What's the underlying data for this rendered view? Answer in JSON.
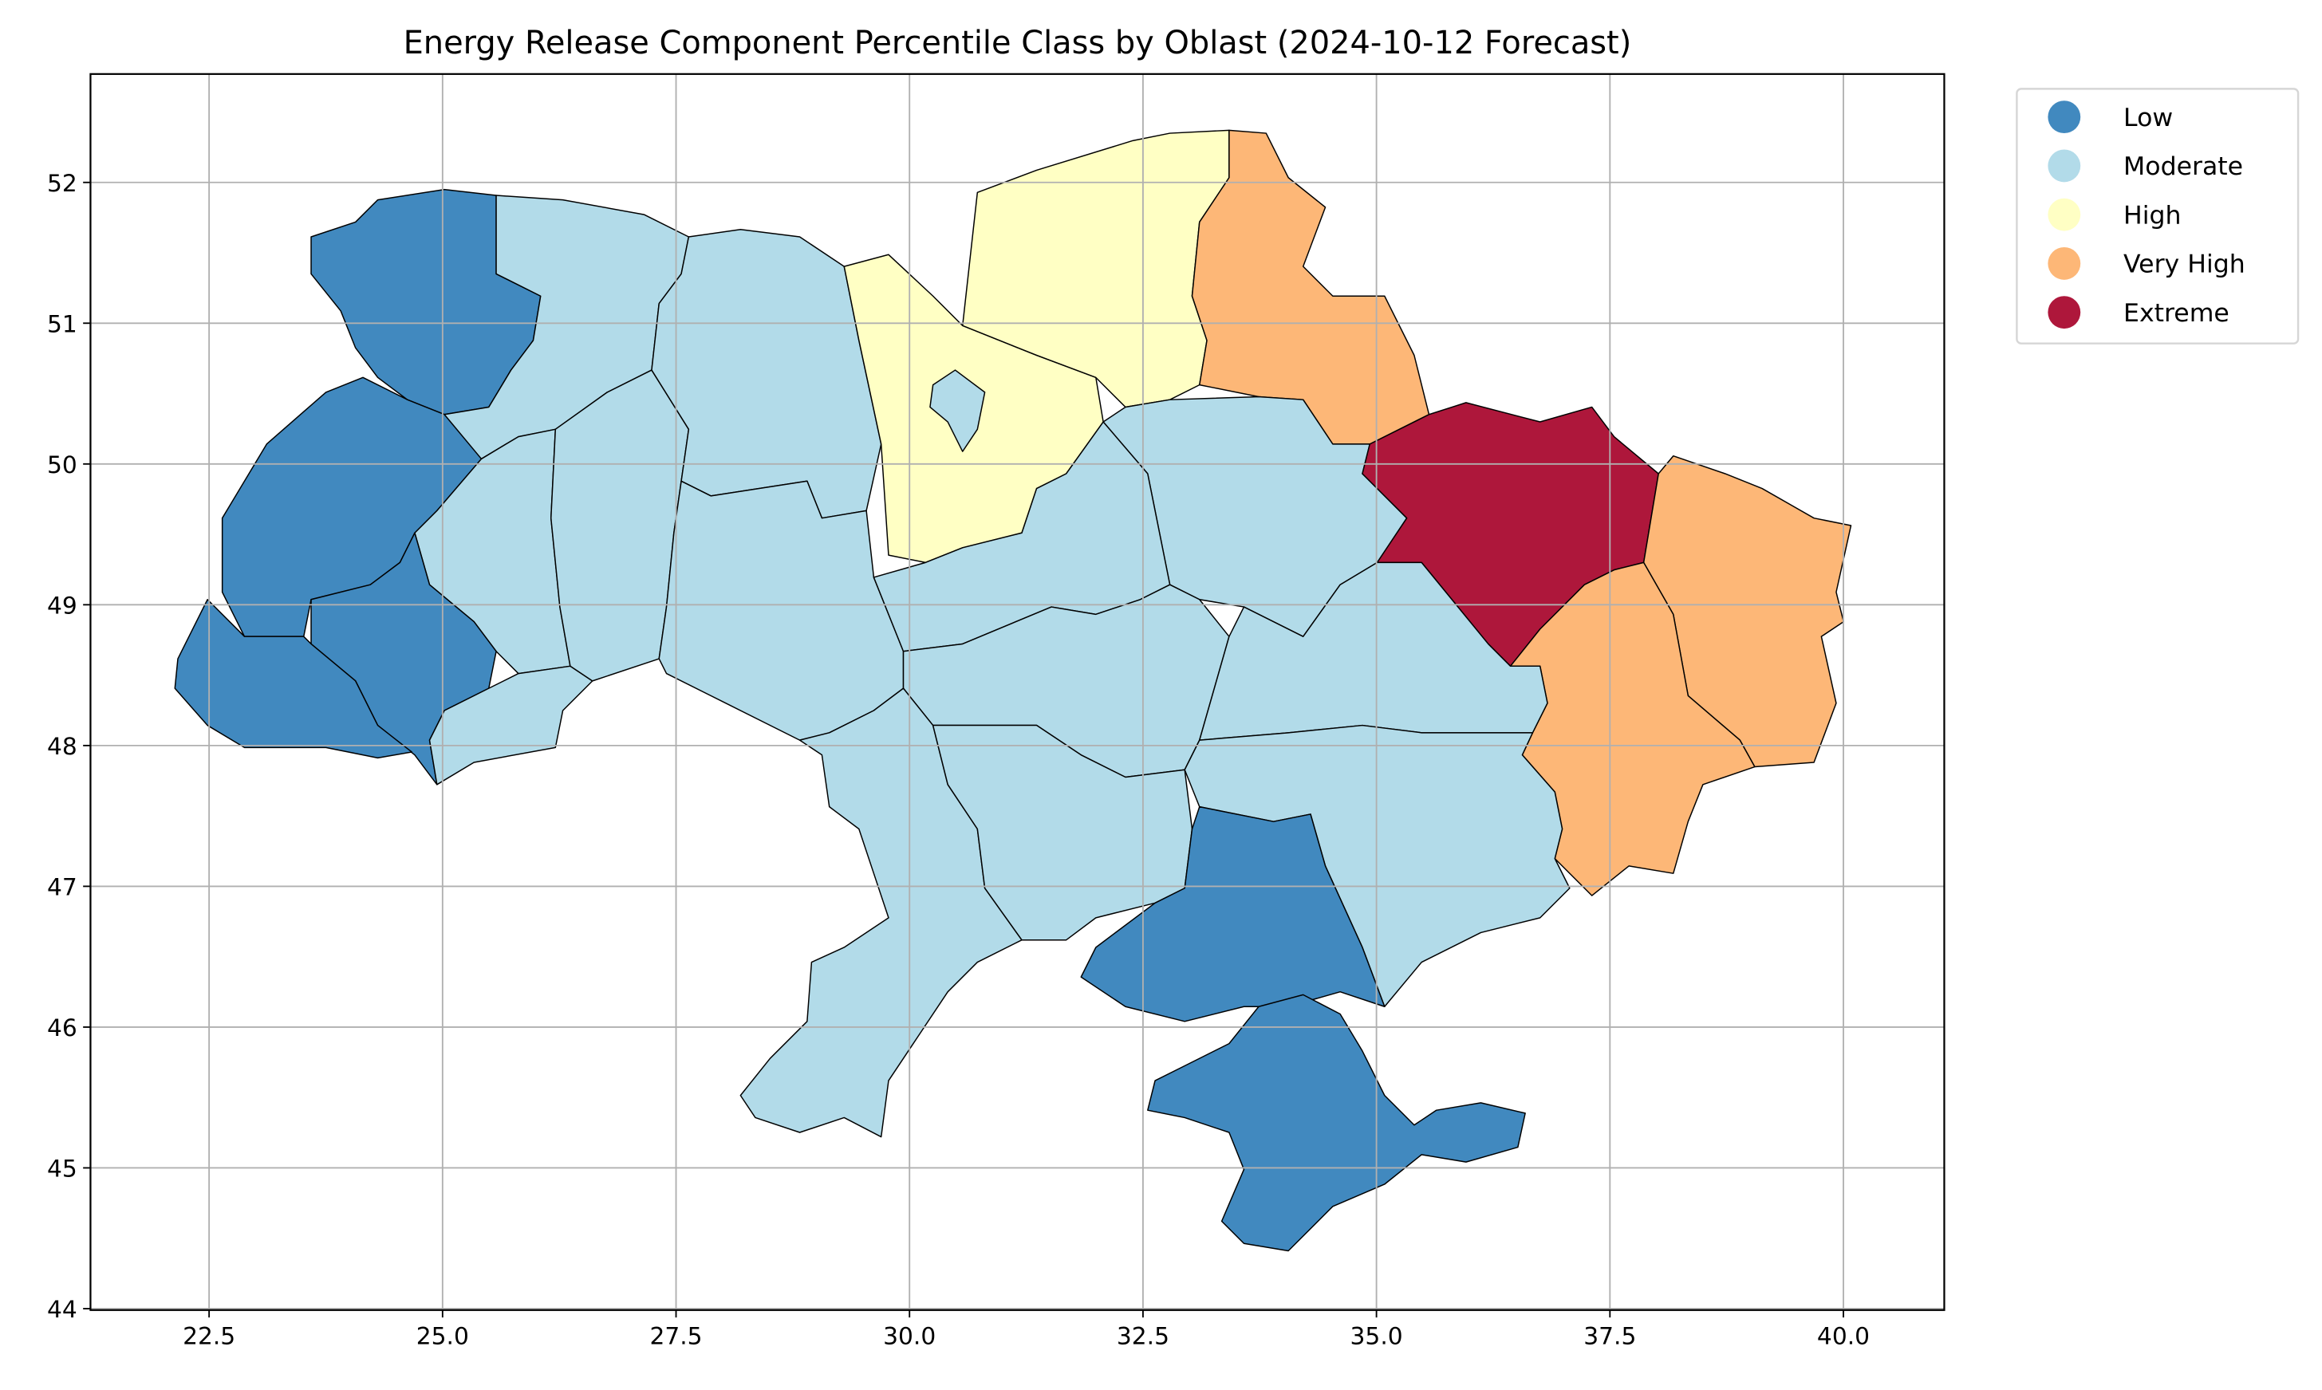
{
  "chart_data": {
    "type": "choropleth",
    "title": "Energy Release Component Percentile Class by Oblast (2024-10-12 Forecast)",
    "xlabel": "",
    "ylabel": "",
    "xlim": [
      21.23,
      41.08
    ],
    "ylim": [
      43.99,
      52.77
    ],
    "xticks": [
      "22.5",
      "25.0",
      "27.5",
      "30.0",
      "32.5",
      "35.0",
      "37.5",
      "40.0"
    ],
    "yticks": [
      "44",
      "45",
      "46",
      "47",
      "48",
      "49",
      "50",
      "51",
      "52"
    ],
    "grid": true,
    "legend_placement": "outside-top-right",
    "legend": [
      {
        "label": "Low",
        "color": "#4189bf"
      },
      {
        "label": "Moderate",
        "color": "#b2dbe9"
      },
      {
        "label": "High",
        "color": "#ffffc4"
      },
      {
        "label": "Very High",
        "color": "#fdb777"
      },
      {
        "label": "Extreme",
        "color": "#ae173b"
      }
    ],
    "regions": [
      {
        "class": "Low"
      },
      {
        "class": "Moderate"
      },
      {
        "class": "Low"
      },
      {
        "class": "Moderate"
      },
      {
        "class": "Low"
      },
      {
        "class": "Low"
      },
      {
        "class": "Moderate"
      },
      {
        "class": "Moderate"
      },
      {
        "class": "Moderate"
      },
      {
        "class": "Moderate"
      },
      {
        "class": "High"
      },
      {
        "class": "Moderate"
      },
      {
        "class": "High"
      },
      {
        "class": "Very High"
      },
      {
        "class": "Moderate"
      },
      {
        "class": "Moderate"
      },
      {
        "class": "Extreme"
      },
      {
        "class": "Very High"
      },
      {
        "class": "Very High"
      },
      {
        "class": "Moderate"
      },
      {
        "class": "Moderate"
      },
      {
        "class": "Moderate"
      },
      {
        "class": "Moderate"
      },
      {
        "class": "Moderate"
      },
      {
        "class": "Low"
      },
      {
        "class": "Low"
      }
    ]
  }
}
